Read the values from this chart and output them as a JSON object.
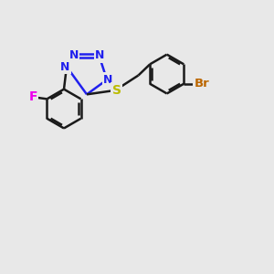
{
  "background_color": "#e8e8e8",
  "bond_color": "#1a1a1a",
  "N_color": "#2020ee",
  "S_color": "#bbbb00",
  "F_color": "#ee00ee",
  "Br_color": "#bb6600",
  "bond_width": 1.8,
  "figsize": [
    3.0,
    3.0
  ],
  "dpi": 100,
  "xlim": [
    0,
    10
  ],
  "ylim": [
    0,
    10
  ]
}
